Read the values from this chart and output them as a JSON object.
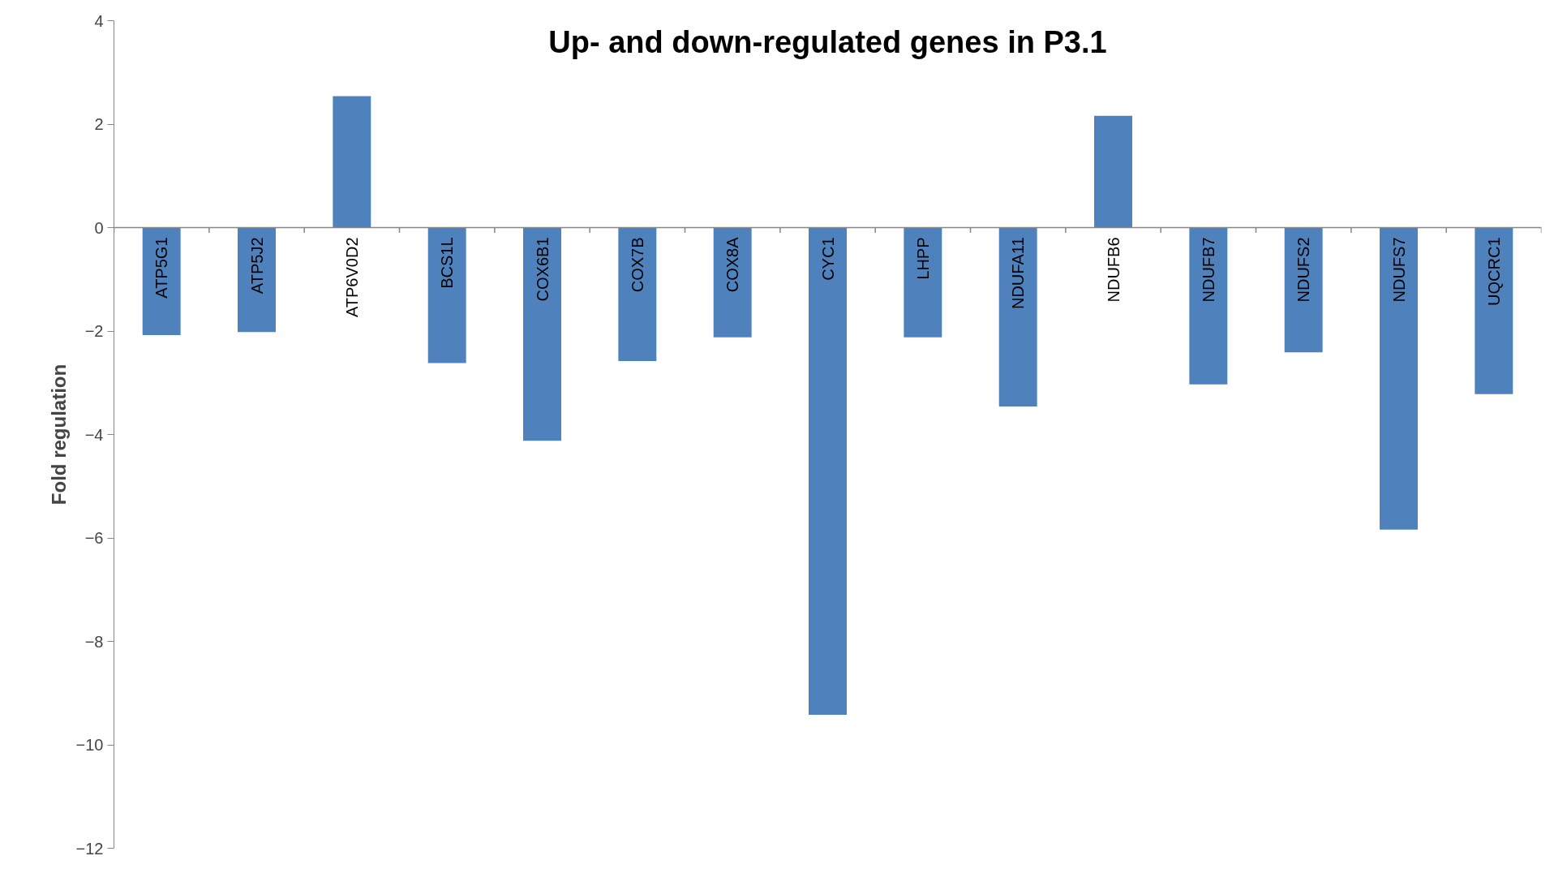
{
  "chart_data": {
    "type": "bar",
    "title": "Up- and down-regulated genes in P3.1",
    "ylabel": "Fold regulation",
    "categories": [
      "ATP5G1",
      "ATP5J2",
      "ATP6V0D2",
      "BCS1L",
      "COX6B1",
      "COX7B",
      "COX8A",
      "CYC1",
      "LHPP",
      "NDUFA11",
      "NDUFB6",
      "NDUFB7",
      "NDUFS2",
      "NDUFS7",
      "UQCRC1"
    ],
    "values": [
      -2.08,
      -2.02,
      2.54,
      -2.62,
      -4.12,
      -2.58,
      -2.12,
      -9.42,
      -2.12,
      -3.46,
      2.16,
      -3.03,
      -2.41,
      -5.84,
      -3.22
    ],
    "color": "#4f81bd",
    "ylim": [
      -12,
      4
    ],
    "yticks": [
      -12,
      -10,
      -8,
      -6,
      -4,
      -2,
      0,
      2,
      4
    ],
    "grid": false
  }
}
